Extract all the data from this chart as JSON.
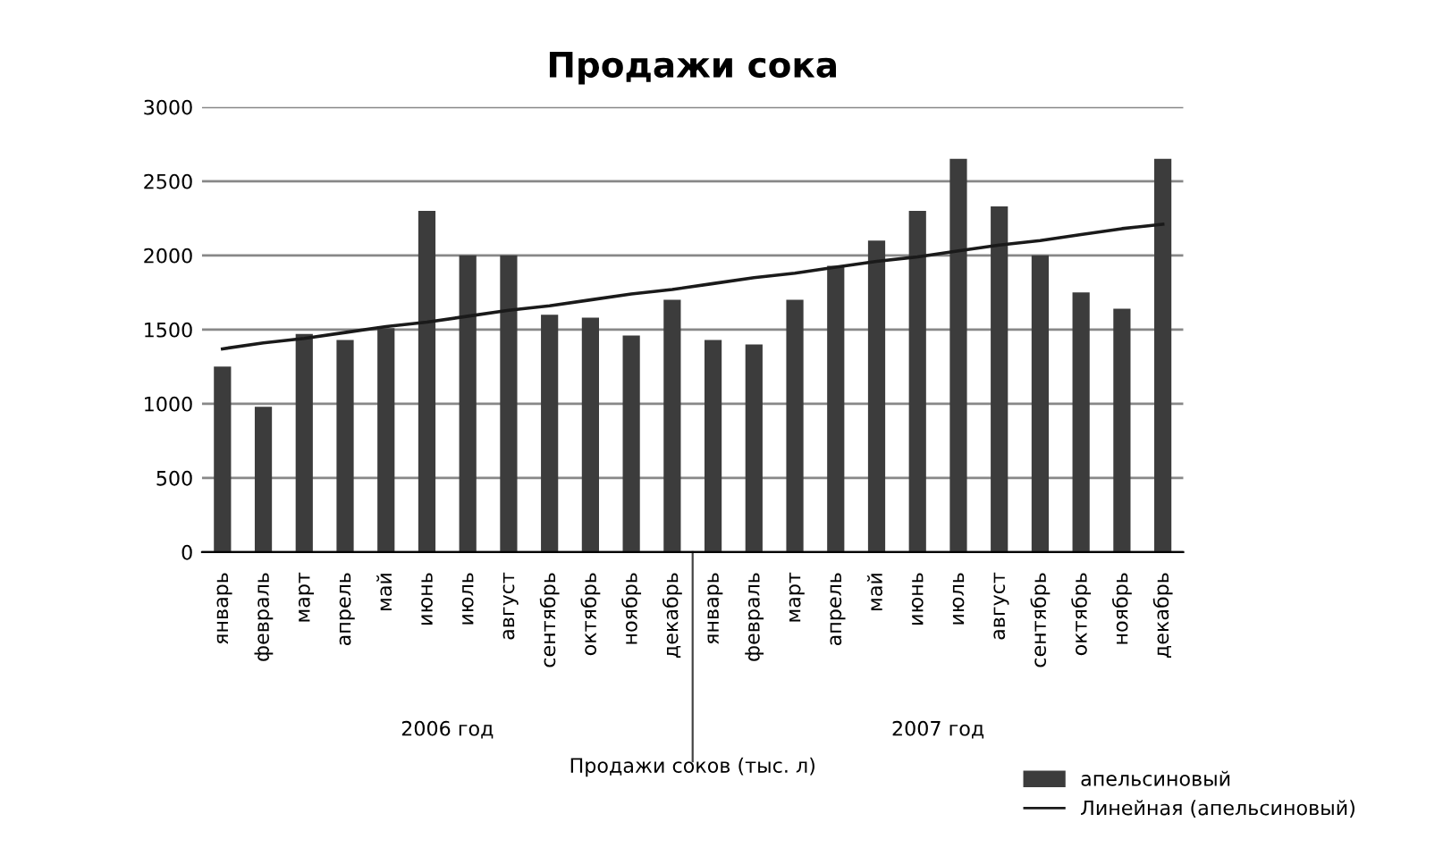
{
  "chart_data": {
    "type": "bar",
    "title": "Продажи сока",
    "categories": [
      "январь",
      "февраль",
      "март",
      "апрель",
      "май",
      "июнь",
      "июль",
      "август",
      "сентябрь",
      "октябрь",
      "ноябрь",
      "декабрь",
      "январь",
      "февраль",
      "март",
      "апрель",
      "май",
      "июнь",
      "июль",
      "август",
      "сентябрь",
      "октябрь",
      "ноябрь",
      "декабрь"
    ],
    "series": [
      {
        "name": "апельсиновый",
        "color": "#3c3c3c",
        "values": [
          1250,
          980,
          1470,
          1430,
          1510,
          2300,
          2000,
          2000,
          1600,
          1580,
          1460,
          1700,
          1430,
          1400,
          1700,
          1930,
          2100,
          2300,
          2650,
          2330,
          2000,
          1750,
          1640,
          2650
        ]
      },
      {
        "name": "Линейная (апельсиновый)",
        "type": "line",
        "color": "#1a1a1a",
        "values": [
          1370,
          1410,
          1440,
          1480,
          1520,
          1550,
          1590,
          1630,
          1660,
          1700,
          1740,
          1770,
          1810,
          1850,
          1880,
          1920,
          1960,
          1990,
          2030,
          2070,
          2100,
          2140,
          2180,
          2210
        ]
      }
    ],
    "xlabel": "Продажи соков (тыс. л)",
    "annotations": [
      "2006 год",
      "2007 год"
    ],
    "ylim": [
      0,
      3000
    ],
    "yticks": [
      0,
      500,
      1000,
      1500,
      2000,
      2500,
      3000
    ],
    "grid": "y",
    "legend": "bottom right"
  }
}
